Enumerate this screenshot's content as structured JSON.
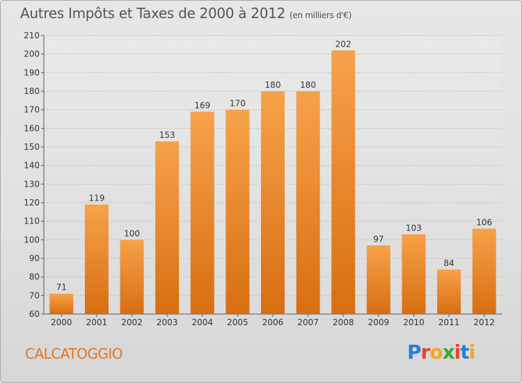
{
  "header": {
    "title": "Autres Impôts et Taxes de 2000 à 2012",
    "subtitle": "(en milliers d'€)"
  },
  "footer": {
    "commune": "CALCATOGGIO",
    "logo": "Proxiti"
  },
  "colors": {
    "bar_top": "#f7a24a",
    "bar_bottom": "#d86e12",
    "grid": "#bdbdbd",
    "commune": "#e3761c"
  },
  "chart_data": {
    "type": "bar",
    "title": "Autres Impôts et Taxes de 2000 à 2012",
    "subtitle": "(en milliers d'€)",
    "xlabel": "",
    "ylabel": "",
    "categories": [
      "2000",
      "2001",
      "2002",
      "2003",
      "2004",
      "2005",
      "2006",
      "2007",
      "2008",
      "2009",
      "2010",
      "2011",
      "2012"
    ],
    "values": [
      71,
      119,
      100,
      153,
      169,
      170,
      180,
      180,
      202,
      97,
      103,
      84,
      106
    ],
    "ylim": [
      60,
      210
    ],
    "yticks": [
      60,
      70,
      80,
      90,
      100,
      110,
      120,
      130,
      140,
      150,
      160,
      170,
      180,
      190,
      200,
      210
    ],
    "grid": true
  }
}
